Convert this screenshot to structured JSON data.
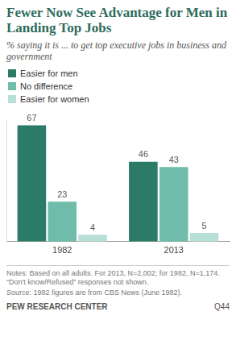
{
  "chart_data": {
    "type": "bar",
    "title": "Fewer Now See Advantage for Men in Landing Top Jobs",
    "subtitle": "% saying it is ... to get top executive jobs in business and government",
    "categories": [
      "1982",
      "2013"
    ],
    "series": [
      {
        "name": "Easier for men",
        "color": "#2b7b67",
        "values": [
          67,
          46
        ]
      },
      {
        "name": "No difference",
        "color": "#6fbcaa",
        "values": [
          23,
          43
        ]
      },
      {
        "name": "Easier for women",
        "color": "#b9e0d6",
        "values": [
          4,
          5
        ]
      }
    ],
    "ylim": [
      0,
      70
    ],
    "grid": false,
    "legend": "top-left",
    "data_labels": true,
    "tick_labels": "x",
    "notes": "Notes: Based on all adults. For 2013, N=2,002; for 1982, N=1,174. “Don't know/Refused” responses not shown.",
    "source": "Source: 1982 figures are from CBS News (June 1982).",
    "credit": "PEW RESEARCH CENTER",
    "code": "Q44"
  }
}
